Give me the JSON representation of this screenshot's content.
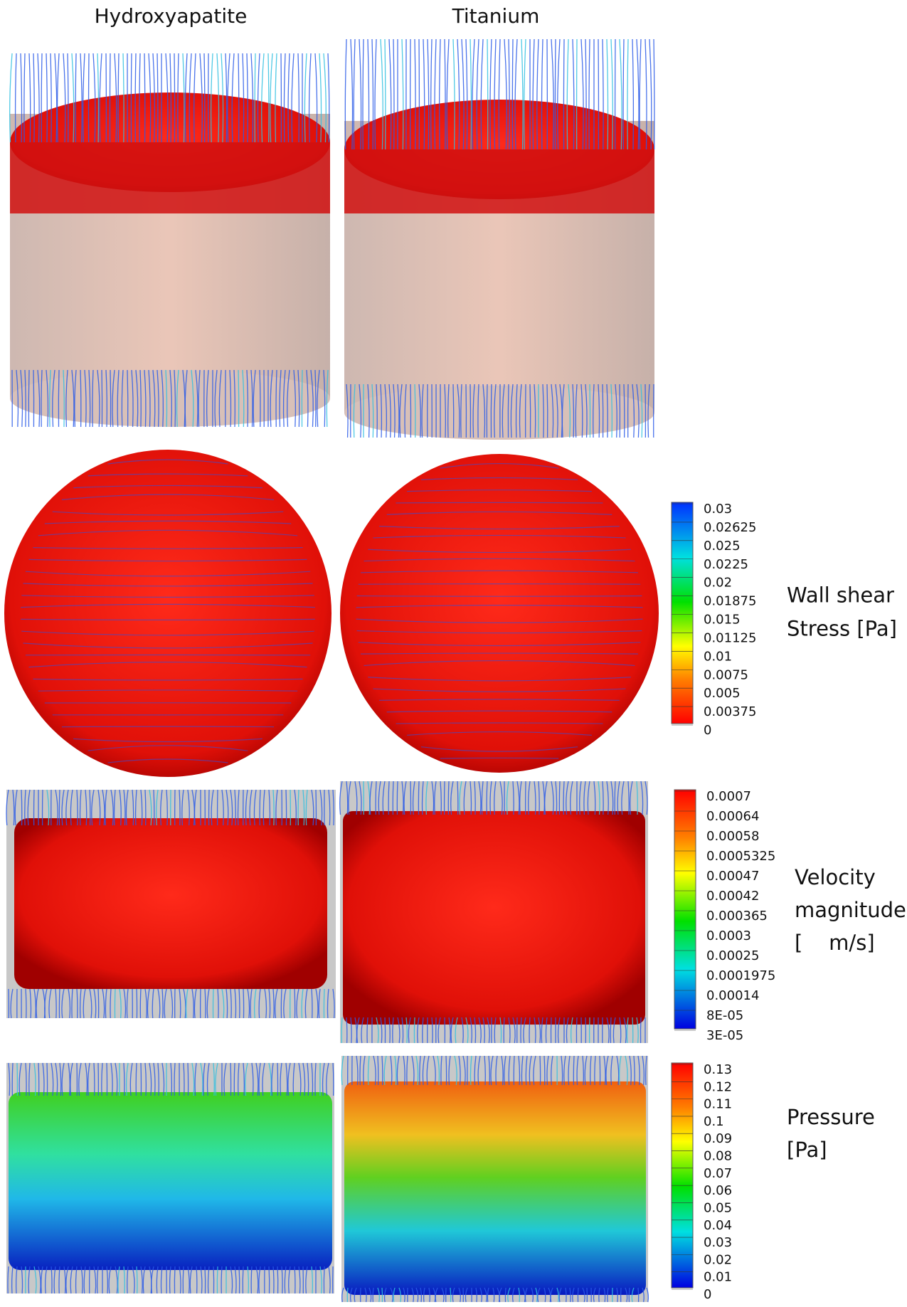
{
  "headers": [
    "Hydroxyapatite",
    "Titanium"
  ],
  "colorbars": [
    {
      "label": [
        "Wall shear",
        "Stress [Pa]"
      ],
      "ticks": [
        "0.03",
        "0.02625",
        "0.025",
        "0.0225",
        "0.02",
        "0.01875",
        "0.015",
        "0.01125",
        "0.01",
        "0.0075",
        "0.005",
        "0.00375",
        "0"
      ]
    },
    {
      "label": [
        "Velocity",
        "magnitude",
        "[    m/s]"
      ],
      "ticks": [
        "0.0007",
        "0.00064",
        "0.00058",
        "0.0005325",
        "0.00047",
        "0.00042",
        "0.000365",
        "0.0003",
        "0.00025",
        "0.0001975",
        "0.00014",
        "8E-05",
        "3E-05"
      ]
    },
    {
      "label": [
        "Pressure",
        "[Pa]"
      ],
      "ticks": [
        "0.13",
        "0.12",
        "0.11",
        "0.1",
        "0.09",
        "0.08",
        "0.07",
        "0.06",
        "0.05",
        "0.04",
        "0.03",
        "0.02",
        "0.01",
        "0"
      ]
    }
  ]
}
